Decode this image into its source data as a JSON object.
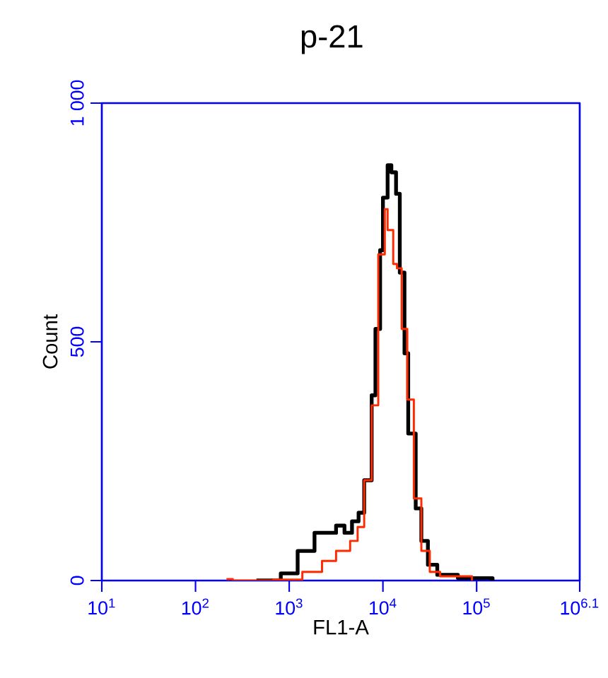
{
  "chart_data": {
    "type": "step",
    "title": "p-21",
    "xlabel": "FL1-A",
    "ylabel": "Count",
    "log": "x",
    "grid": false,
    "xlim": [
      10,
      1258925
    ],
    "ylim": [
      0,
      1000
    ],
    "xticks": [
      {
        "value": 10,
        "label": "10$^{1}$"
      },
      {
        "value": 100,
        "label": "10$^{2}$"
      },
      {
        "value": 1000,
        "label": "10$^{3}$"
      },
      {
        "value": 10000,
        "label": "10$^{4}$"
      },
      {
        "value": 100000,
        "label": "10$^{5}$"
      },
      {
        "value": 1258925,
        "label": "10$^{6.1}$"
      }
    ],
    "yticks": [
      0,
      500,
      {
        "value": 1000,
        "label": "1 000"
      }
    ],
    "series": [
      {
        "color": "#000000",
        "x": [
          447,
          813,
          1230,
          1862,
          3162,
          3890,
          4677,
          5495,
          6310,
          7586,
          8318,
          9333,
          10000,
          11220,
          12303,
          13804,
          15136,
          16982,
          18621,
          22387,
          25704,
          30200,
          38019,
          63096,
          147911
        ],
        "values": [
          0,
          15,
          62,
          100,
          115,
          100,
          124,
          142,
          210,
          388,
          527,
          692,
          802,
          870,
          855,
          810,
          645,
          476,
          308,
          151,
          83,
          33,
          12,
          5,
          0
        ]
      },
      {
        "color": "#ff2a00",
        "x": [
          214,
          250,
          676,
          1380,
          2239,
          3162,
          4467,
          5370,
          6310,
          7586,
          8913,
          10471,
          11220,
          12882,
          14125,
          15849,
          18197,
          21380,
          25704,
          31623,
          40738,
          89125
        ],
        "values": [
          3,
          0,
          2,
          18,
          41,
          62,
          83,
          112,
          210,
          367,
          683,
          778,
          734,
          663,
          654,
          527,
          379,
          172,
          62,
          18,
          9,
          0
        ]
      }
    ]
  }
}
